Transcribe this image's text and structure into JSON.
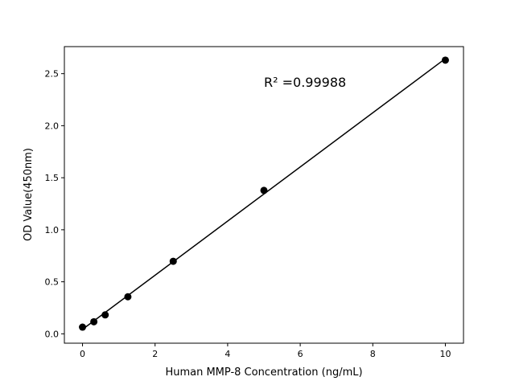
{
  "chart_data": {
    "type": "scatter",
    "title": "",
    "xlabel": "Human MMP-8 Concentration (ng/mL)",
    "ylabel": "OD Value(450nm)",
    "xlim": [
      -0.5,
      10.5
    ],
    "ylim": [
      -0.09,
      2.76
    ],
    "xticks": [
      0,
      2,
      4,
      6,
      8,
      10
    ],
    "xtick_labels": [
      "0",
      "2",
      "4",
      "6",
      "8",
      "10"
    ],
    "yticks": [
      0.0,
      0.5,
      1.0,
      1.5,
      2.0,
      2.5
    ],
    "ytick_labels": [
      "0.0",
      "0.5",
      "1.0",
      "1.5",
      "2.0",
      "2.5"
    ],
    "grid": false,
    "annotation": "R² =0.99988",
    "series": [
      {
        "x": [
          0,
          0.3125,
          0.625,
          1.25,
          2.5,
          5,
          10
        ],
        "y": [
          0.064,
          0.116,
          0.182,
          0.356,
          0.697,
          1.378,
          2.63
        ],
        "marker": "circle",
        "color": "#000000",
        "fit_line": "linear"
      }
    ]
  }
}
